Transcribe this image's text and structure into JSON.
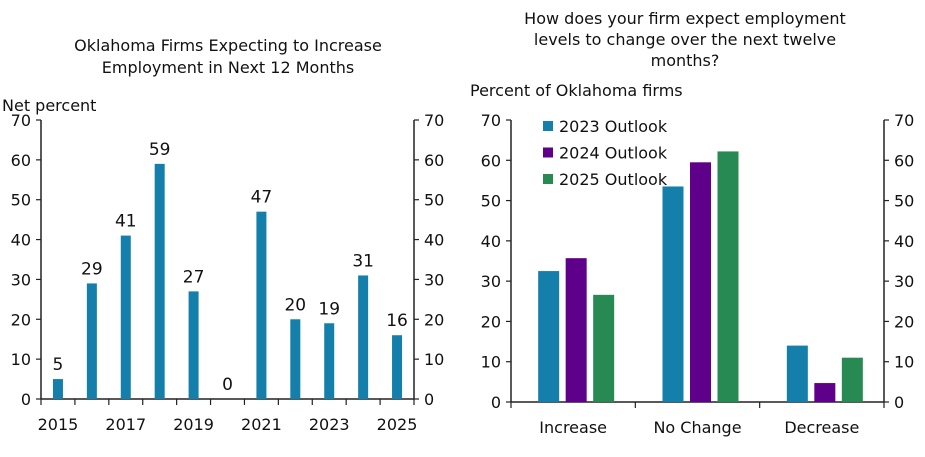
{
  "chart_data": [
    {
      "type": "bar",
      "title": "Oklahoma Firms Expecting to Increase Employment in Next 12 Months",
      "title_lines": [
        "Oklahoma Firms Expecting to Increase",
        "Employment in Next 12 Months"
      ],
      "ylabel": "Net percent",
      "ylim": [
        0,
        70
      ],
      "yticks": [
        0,
        10,
        20,
        30,
        40,
        50,
        60,
        70
      ],
      "categories": [
        "2015",
        "2016",
        "2017",
        "2018",
        "2019",
        "2020",
        "2021",
        "2022",
        "2023",
        "2024",
        "2025"
      ],
      "xtick_labels": [
        "2015",
        "2017",
        "2019",
        "2021",
        "2023",
        "2025"
      ],
      "values": [
        5,
        29,
        41,
        59,
        27,
        0,
        47,
        20,
        19,
        31,
        16
      ],
      "data_labels": [
        "5",
        "29",
        "41",
        "59",
        "27",
        "0",
        "47",
        "20",
        "19",
        "31",
        "16"
      ],
      "color": "#137faa",
      "grid": false,
      "secondary_axis": true
    },
    {
      "type": "bar",
      "title": "How does your firm expect employment levels to change over the next twelve months?",
      "title_lines": [
        "How does your firm expect employment",
        "levels to change over the next twelve",
        "months?"
      ],
      "ylabel": "Percent of Oklahoma firms",
      "ylim": [
        0,
        70
      ],
      "yticks": [
        0,
        10,
        20,
        30,
        40,
        50,
        60,
        70
      ],
      "categories": [
        "Increase",
        "No Change",
        "Decrease"
      ],
      "series": [
        {
          "name": "2023 Outlook",
          "values": [
            32.5,
            53.5,
            14
          ],
          "color": "#137faa"
        },
        {
          "name": "2024 Outlook",
          "values": [
            35.7,
            59.5,
            4.7
          ],
          "color": "#5e0089"
        },
        {
          "name": "2025 Outlook",
          "values": [
            26.6,
            62.2,
            11
          ],
          "color": "#268a52"
        }
      ],
      "legend": "top-left",
      "grid": false,
      "secondary_axis": true
    }
  ]
}
